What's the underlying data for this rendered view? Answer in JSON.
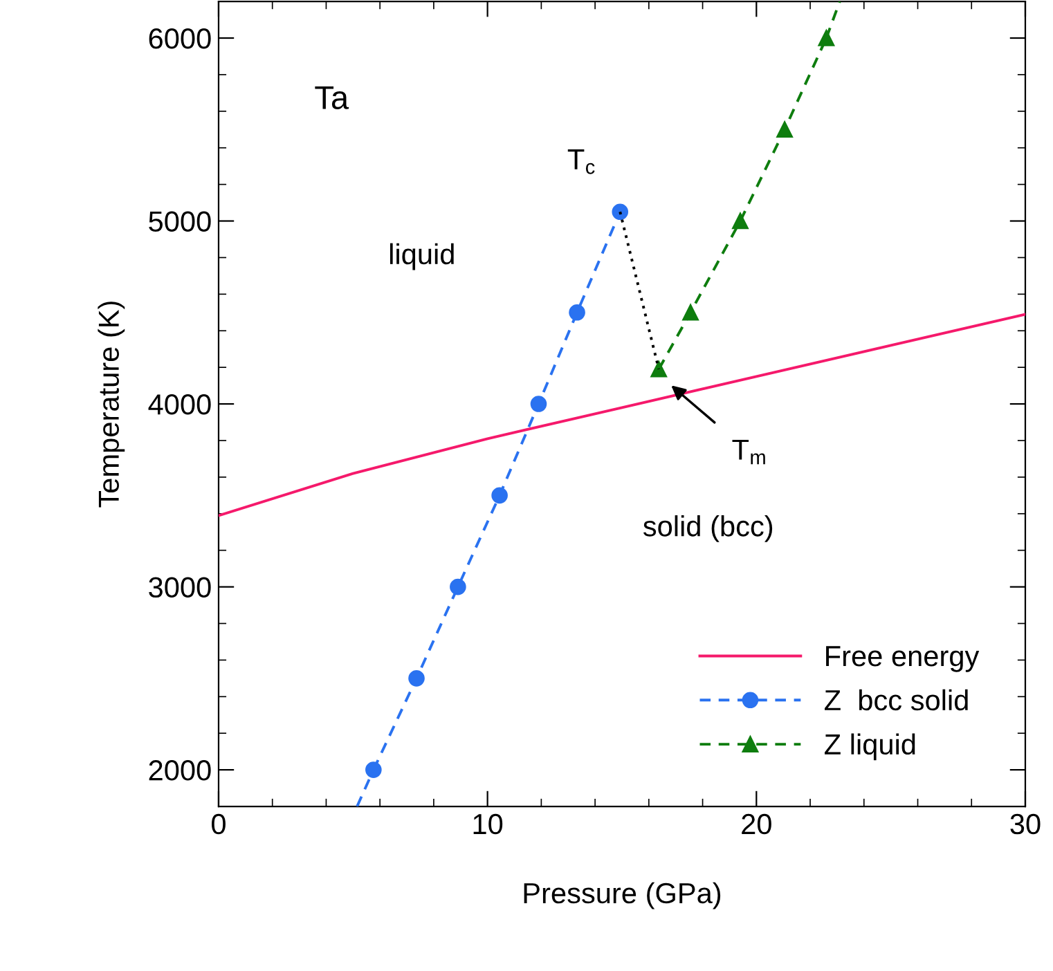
{
  "chart_data": {
    "type": "line",
    "xlabel": "Pressure (GPa)",
    "ylabel": "Temperature (K)",
    "xlim": [
      0,
      30
    ],
    "ylim": [
      1800,
      6200
    ],
    "xticks": [
      0,
      10,
      20,
      30
    ],
    "yticks": [
      2000,
      3000,
      4000,
      5000,
      6000
    ],
    "grid": false,
    "legend": "bottom right",
    "series": [
      {
        "name": "Free energy",
        "color": "#f5196b",
        "line_style": "solid",
        "marker": "none",
        "x": [
          0,
          5,
          10,
          15,
          20,
          25,
          30
        ],
        "values": [
          3390,
          3620,
          3810,
          3980,
          4150,
          4320,
          4490
        ]
      },
      {
        "name": "Z  bcc solid",
        "color": "#2a72f0",
        "line_style": "dashed",
        "marker": "circle",
        "x": [
          5.76,
          7.36,
          8.9,
          10.45,
          11.9,
          13.33,
          14.93
        ],
        "values": [
          2000,
          2500,
          3000,
          3500,
          4000,
          4500,
          5050
        ]
      },
      {
        "name": "Z liquid",
        "color": "#0e7d0e",
        "line_style": "dashed",
        "marker": "triangle",
        "x": [
          16.37,
          17.55,
          19.4,
          21.05,
          22.6
        ],
        "values": [
          4190,
          4500,
          5000,
          5500,
          6000
        ]
      },
      {
        "color": "#2a72f0",
        "line_style": "dashed",
        "marker": "none",
        "x": [
          5.15,
          5.76
        ],
        "values": [
          1800,
          2000
        ]
      },
      {
        "color": "#0e7d0e",
        "line_style": "dashed",
        "marker": "none",
        "x": [
          22.6,
          23.1
        ],
        "values": [
          6000,
          6200
        ]
      },
      {
        "color": "#000000",
        "line_style": "dotted",
        "marker": "none",
        "x": [
          14.93,
          16.37
        ],
        "values": [
          5050,
          4190
        ]
      }
    ],
    "annotations": [
      "Ta",
      "liquid",
      "solid (bcc)",
      {
        "text": "T$_{c}$",
        "x": 14.93,
        "y": 5050
      },
      "T$_{m}$"
    ]
  }
}
